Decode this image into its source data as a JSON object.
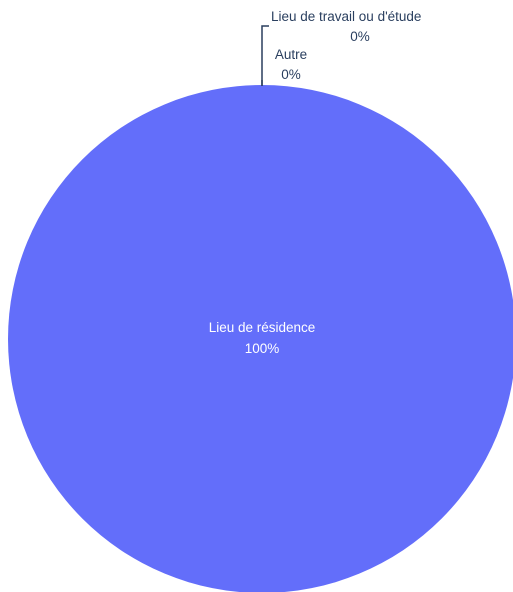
{
  "chart_data": {
    "type": "pie",
    "categories": [
      "Lieu de résidence",
      "Lieu de travail ou d'étude",
      "Autre"
    ],
    "values": [
      100,
      0,
      0
    ],
    "value_labels": [
      "100%",
      "0%",
      "0%"
    ],
    "colors": [
      "#636efa",
      "#ef553b",
      "#00cc96"
    ],
    "title": "",
    "legend": "none"
  }
}
